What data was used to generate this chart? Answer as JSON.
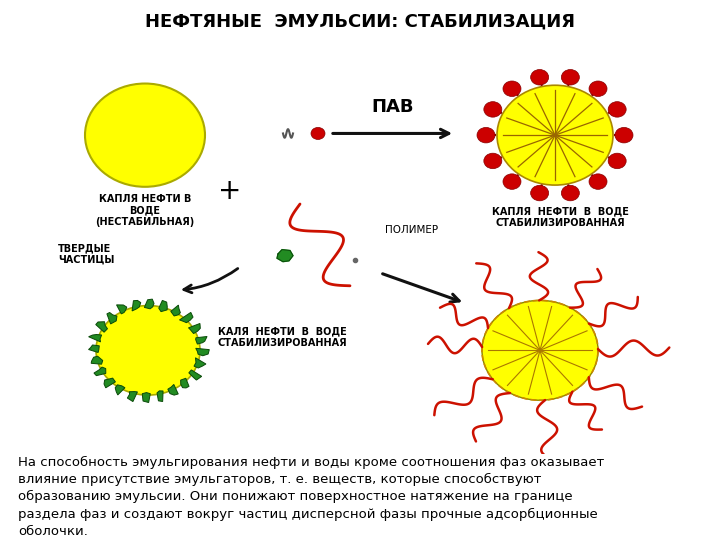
{
  "title": "НЕФТЯНЫЕ  ЭМУЛЬСИИ: СТАБИЛИЗАЦИЯ",
  "title_fontsize": 13,
  "title_fontweight": "bold",
  "bg_color": "#ffffff",
  "header_bg": "#c8d9a0",
  "body_text": "На способность эмульгирования нефти и воды кроме соотношения фаз оказывает\nвлияние присутствие эмульгаторов, т. е. веществ, которые способствуют\nобразованию эмульсии. Они понижают поверхностное натяжение на границе\nраздела фаз и создают вокруг частиц дисперсной фазы прочные адсорбционные\nоболочки.",
  "body_fontsize": 9.5,
  "label_fontsize": 7.0,
  "pav_label": "ПАВ",
  "polymer_label": "ПОЛИМЕР",
  "label1": "КАПЛЯ НЕФТИ В\nВОДЕ\n(НЕСТАБИЛЬНАЯ)",
  "label2": "КАПЛЯ  НЕФТИ  В  ВОДЕ\nСТАБИЛИЗИРОВАННАЯ",
  "label3": "ТВЕРДЫЕ\nЧАСТИЦЫ",
  "label4": "КАЛЯ  НЕФТИ  В  ВОДЕ\nСТАБИЛИЗИРОВАННАЯ",
  "yellow": "#FFFF00",
  "red_circle": "#CC0000",
  "green_particle": "#228B22",
  "red_chain": "#CC1100",
  "arrow_color": "#111111",
  "dashed_color": "#7799CC"
}
